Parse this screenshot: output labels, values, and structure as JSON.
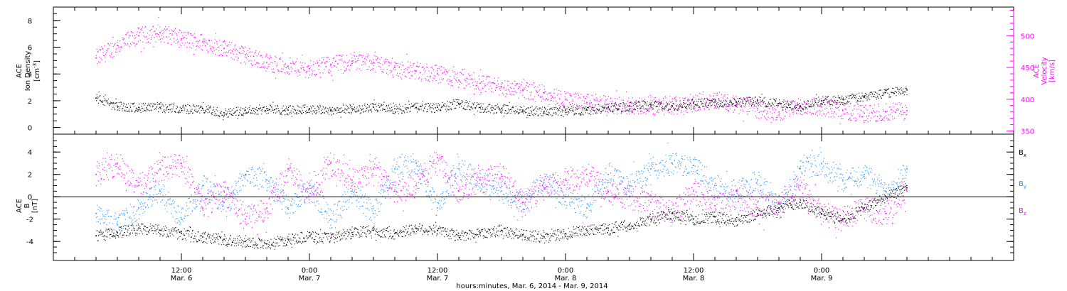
{
  "colors": {
    "black": "#000000",
    "magenta": "#ff00ff",
    "blue": "#1e90ff"
  },
  "chart_data": [
    {
      "type": "scatter",
      "title": "",
      "ylabel": [
        "ACE",
        "Ion Density",
        "[cm",
        "-3",
        "]"
      ],
      "y2label": [
        "ACE",
        "Velocity",
        "[km/s]"
      ],
      "ylim": [
        -0.5,
        9
      ],
      "y2lim": [
        345,
        545
      ],
      "yticks": [
        0,
        2,
        4,
        6,
        8
      ],
      "y2ticks": [
        350,
        400,
        450,
        500
      ],
      "series": [
        {
          "axis": "left",
          "color": "#000000",
          "x_hours": [
            0,
            2,
            4,
            6,
            8,
            10,
            12,
            14,
            16,
            18,
            20,
            22,
            24,
            26,
            28,
            30,
            32,
            34,
            36,
            38,
            40,
            42,
            44,
            46,
            48,
            50,
            52,
            54,
            56,
            58,
            60,
            62,
            64,
            66,
            68,
            70,
            72,
            74,
            76
          ],
          "values": [
            2.2,
            1.6,
            1.5,
            1.5,
            1.4,
            1.4,
            1.1,
            1.3,
            1.4,
            1.3,
            1.4,
            1.3,
            1.4,
            1.5,
            1.4,
            1.5,
            1.5,
            1.8,
            1.5,
            1.4,
            1.3,
            1.2,
            1.3,
            1.3,
            1.5,
            1.6,
            1.7,
            1.6,
            1.8,
            1.9,
            1.9,
            2.0,
            1.8,
            1.6,
            2.0,
            2.1,
            2.3,
            2.6,
            2.8
          ]
        },
        {
          "axis": "right",
          "color": "#ff00ff",
          "x_hours": [
            0,
            2,
            4,
            6,
            8,
            10,
            12,
            14,
            16,
            18,
            20,
            22,
            24,
            26,
            28,
            30,
            32,
            34,
            36,
            38,
            40,
            42,
            44,
            46,
            48,
            50,
            52,
            54,
            56,
            58,
            60,
            62,
            64,
            66,
            68,
            70,
            72,
            74,
            76
          ],
          "values": [
            465,
            485,
            500,
            505,
            495,
            490,
            480,
            470,
            458,
            452,
            448,
            455,
            460,
            458,
            450,
            445,
            440,
            430,
            425,
            420,
            415,
            410,
            400,
            395,
            392,
            390,
            390,
            390,
            395,
            400,
            392,
            385,
            380,
            390,
            388,
            382,
            378,
            380,
            382
          ]
        }
      ]
    },
    {
      "type": "scatter",
      "title": "",
      "ylabel": [
        "ACE",
        "B",
        "[nT]"
      ],
      "ylim": [
        -5.7,
        5.6
      ],
      "yticks": [
        -4,
        -2,
        0,
        2,
        4
      ],
      "legend": {
        "placement": "right",
        "entries": [
          {
            "name": "B",
            "sub": "x",
            "color": "#000000"
          },
          {
            "name": "B",
            "sub": "y",
            "color": "#1e90ff"
          },
          {
            "name": "B",
            "sub": "z",
            "color": "#ff00ff"
          }
        ]
      },
      "series": [
        {
          "name": "Bx",
          "color": "#000000",
          "x_hours": [
            0,
            2,
            4,
            6,
            8,
            10,
            12,
            14,
            16,
            18,
            20,
            22,
            24,
            26,
            28,
            30,
            32,
            34,
            36,
            38,
            40,
            42,
            44,
            46,
            48,
            50,
            52,
            54,
            56,
            58,
            60,
            62,
            64,
            66,
            68,
            70,
            72,
            74,
            76
          ],
          "values": [
            -3.5,
            -3.2,
            -2.8,
            -3.0,
            -3.3,
            -3.6,
            -3.8,
            -4.0,
            -4.2,
            -3.8,
            -3.5,
            -3.7,
            -3.2,
            -3.0,
            -3.3,
            -2.8,
            -3.0,
            -3.5,
            -3.2,
            -3.0,
            -3.4,
            -3.6,
            -3.3,
            -3.0,
            -2.8,
            -2.5,
            -2.0,
            -1.5,
            -2.0,
            -1.8,
            -2.2,
            -1.5,
            -1.0,
            -0.5,
            -1.5,
            -2.0,
            -1.0,
            0.0,
            0.8
          ]
        },
        {
          "name": "By",
          "color": "#1e90ff",
          "x_hours": [
            0,
            2,
            4,
            6,
            8,
            10,
            12,
            14,
            16,
            18,
            20,
            22,
            24,
            26,
            28,
            30,
            32,
            34,
            36,
            38,
            40,
            42,
            44,
            46,
            48,
            50,
            52,
            54,
            56,
            58,
            60,
            62,
            64,
            66,
            68,
            70,
            72,
            74,
            76
          ],
          "values": [
            -1.5,
            -2.5,
            -1.0,
            0.5,
            -2.0,
            1.0,
            -0.5,
            2.0,
            1.5,
            -1.0,
            1.0,
            -2.0,
            0.5,
            -1.5,
            2.5,
            3.0,
            -1.0,
            2.5,
            1.5,
            0.5,
            -0.5,
            1.5,
            0.0,
            -1.0,
            2.0,
            1.0,
            2.5,
            3.0,
            2.8,
            1.0,
            0.5,
            1.5,
            -1.0,
            2.5,
            3.0,
            1.5,
            2.0,
            0.5,
            2.5
          ]
        },
        {
          "name": "Bz",
          "color": "#ff00ff",
          "x_hours": [
            0,
            2,
            4,
            6,
            8,
            10,
            12,
            14,
            16,
            18,
            20,
            22,
            24,
            26,
            28,
            30,
            32,
            34,
            36,
            38,
            40,
            42,
            44,
            46,
            48,
            50,
            52,
            54,
            56,
            58,
            60,
            62,
            64,
            66,
            68,
            70,
            72,
            74,
            76
          ],
          "values": [
            2.0,
            3.0,
            1.0,
            2.5,
            3.0,
            -1.0,
            0.5,
            -2.0,
            -1.0,
            2.5,
            0.0,
            3.0,
            1.5,
            2.5,
            0.5,
            1.0,
            3.5,
            0.5,
            1.5,
            2.0,
            -0.5,
            0.8,
            1.5,
            2.0,
            0.5,
            0.0,
            -0.5,
            -1.5,
            0.5,
            -0.8,
            0.0,
            -1.0,
            -0.5,
            1.0,
            -1.5,
            -2.0,
            -1.0,
            -1.5,
            0.5
          ]
        }
      ]
    }
  ],
  "x_axis": {
    "range_hours": [
      -4,
      86
    ],
    "ticks": [
      {
        "hour": 8,
        "time": "12:00",
        "date": "Mar. 6"
      },
      {
        "hour": 20,
        "time": "0:00",
        "date": "Mar. 7"
      },
      {
        "hour": 32,
        "time": "12:00",
        "date": "Mar. 7"
      },
      {
        "hour": 44,
        "time": "0:00",
        "date": "Mar. 8"
      },
      {
        "hour": 56,
        "time": "12:00",
        "date": "Mar. 8"
      },
      {
        "hour": 68,
        "time": "0:00",
        "date": "Mar. 9"
      }
    ],
    "label": "hours:minutes, Mar.  6, 2014 - Mar.  9, 2014"
  }
}
